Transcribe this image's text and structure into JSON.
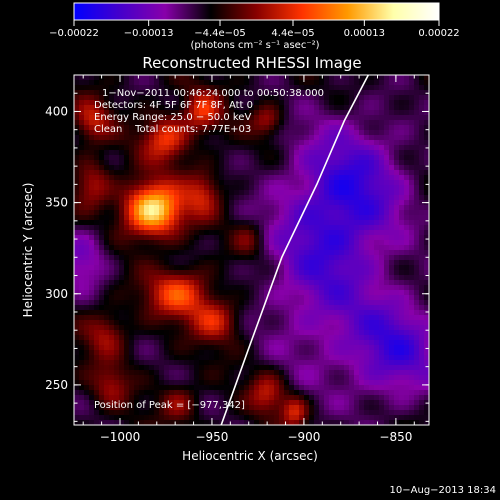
{
  "chart_data": {
    "type": "heatmap",
    "title": "Reconstructed RHESSI Image",
    "xlabel": "Heliocentric X (arcsec)",
    "ylabel": "Heliocentric Y (arcsec)",
    "xlim": [
      -1025,
      -832
    ],
    "ylim": [
      228,
      420
    ],
    "x_ticks": [
      -1000,
      -950,
      -900,
      -850
    ],
    "y_ticks": [
      250,
      300,
      350,
      400
    ],
    "x_tick_labels": [
      "−1000",
      "−950",
      "−900",
      "−850"
    ],
    "y_tick_labels": [
      "250",
      "300",
      "350",
      "400"
    ],
    "colorbar": {
      "min": -0.00022,
      "max": 0.00022,
      "ticks": [
        -0.00022,
        -0.00013,
        -4.4e-05,
        4.4e-05,
        0.00013,
        0.00022
      ],
      "tick_labels": [
        "−0.00022",
        "−0.00013",
        "−4.4e−05",
        "4.4e−05",
        "0.00013",
        "0.00022"
      ],
      "units_label": "(photons cm⁻² s⁻¹ asec⁻²)",
      "colors": [
        "#0000ff",
        "#4400cc",
        "#8800aa",
        "#000000",
        "#880000",
        "#ff3300",
        "#ff9900",
        "#ffffaa",
        "#ffffff"
      ]
    },
    "annotations": [
      "1−Nov−2011 00:46:24.000 to 00:50:38.000",
      "Detectors: 4F 5F 6F 7F 8F, Att 0",
      "Energy Range: 25.0 − 50.0 keV",
      "Clean    Total counts: 7.77E+03"
    ],
    "peak_label": "Position of Peak = [−977,342]",
    "peak": [
      -977,
      342
    ],
    "limb_curve": [
      [
        -945,
        228
      ],
      [
        -930,
        270
      ],
      [
        -912,
        320
      ],
      [
        -893,
        360
      ],
      [
        -878,
        395
      ],
      [
        -865,
        420
      ]
    ],
    "sources": [
      {
        "x": -982,
        "y": 346,
        "sx": 11,
        "sy": 10,
        "amp": 0.00022
      },
      {
        "x": -1015,
        "y": 360,
        "sx": 7,
        "sy": 9,
        "amp": 8e-05
      },
      {
        "x": -975,
        "y": 385,
        "sx": 9,
        "sy": 9,
        "amp": 0.00011
      },
      {
        "x": -955,
        "y": 400,
        "sx": 7,
        "sy": 8,
        "amp": 0.0001
      },
      {
        "x": -920,
        "y": 395,
        "sx": 6,
        "sy": 6,
        "amp": 7e-05
      },
      {
        "x": -955,
        "y": 355,
        "sx": 7,
        "sy": 9,
        "amp": 8e-05
      },
      {
        "x": -968,
        "y": 300,
        "sx": 12,
        "sy": 9,
        "amp": 0.00012
      },
      {
        "x": -948,
        "y": 285,
        "sx": 9,
        "sy": 8,
        "amp": 9e-05
      },
      {
        "x": -1008,
        "y": 278,
        "sx": 8,
        "sy": 9,
        "amp": 7e-05
      },
      {
        "x": -1005,
        "y": 250,
        "sx": 7,
        "sy": 8,
        "amp": 6e-05
      },
      {
        "x": -968,
        "y": 240,
        "sx": 7,
        "sy": 7,
        "amp": 6e-05
      },
      {
        "x": -920,
        "y": 245,
        "sx": 7,
        "sy": 8,
        "amp": 8e-05
      },
      {
        "x": -905,
        "y": 235,
        "sx": 5,
        "sy": 6,
        "amp": 9e-05
      },
      {
        "x": -1015,
        "y": 395,
        "sx": 7,
        "sy": 8,
        "amp": 8e-05
      },
      {
        "x": -930,
        "y": 330,
        "sx": 6,
        "sy": 7,
        "amp": 5e-05
      },
      {
        "x": -890,
        "y": 320,
        "sx": 22,
        "sy": 40,
        "amp": -9e-05
      },
      {
        "x": -870,
        "y": 360,
        "sx": 20,
        "sy": 25,
        "amp": -8e-05
      },
      {
        "x": -850,
        "y": 270,
        "sx": 18,
        "sy": 20,
        "amp": -0.0001
      },
      {
        "x": -1020,
        "y": 320,
        "sx": 10,
        "sy": 12,
        "amp": -7e-05
      }
    ]
  },
  "footer": {
    "timestamp": "10−Aug−2013 18:34"
  }
}
